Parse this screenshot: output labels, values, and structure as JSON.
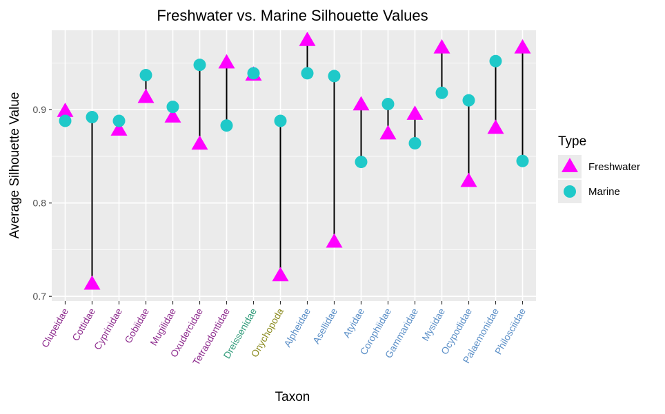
{
  "chart_data": {
    "type": "scatter",
    "title": "Freshwater vs. Marine Silhouette Values",
    "xlabel": "Taxon",
    "ylabel": "Average Silhouette Value",
    "ylim": [
      0.695,
      0.985
    ],
    "yticks": [
      0.7,
      0.8,
      0.9
    ],
    "ytick_labels": [
      "0.7",
      "0.8",
      "0.9"
    ],
    "grid": true,
    "legend_position": "right",
    "legend_title": "Type",
    "categories": [
      "Clupeidae",
      "Cottidae",
      "Cyprinidae",
      "Gobiidae",
      "Mugilidae",
      "Oxudercidae",
      "Tetraodontidae",
      "Dreissenidae",
      "Onychopoda",
      "Alpheidae",
      "Asellidae",
      "Atyidae",
      "Corophiidae",
      "Gammaridae",
      "Mysidae",
      "Ocypodidae",
      "Palaemonidae",
      "Philosciidae"
    ],
    "category_colors": [
      "#8e2c8e",
      "#8e2c8e",
      "#8e2c8e",
      "#8e2c8e",
      "#8e2c8e",
      "#8e2c8e",
      "#8e2c8e",
      "#2e9a78",
      "#8a8a1e",
      "#5b8fc7",
      "#5b8fc7",
      "#5b8fc7",
      "#5b8fc7",
      "#5b8fc7",
      "#5b8fc7",
      "#5b8fc7",
      "#5b8fc7",
      "#5b8fc7"
    ],
    "series": [
      {
        "name": "Freshwater",
        "marker": "triangle",
        "color": "#ff00ff",
        "values": [
          0.898,
          0.713,
          0.878,
          0.913,
          0.892,
          0.863,
          0.95,
          0.937,
          0.722,
          0.974,
          0.758,
          0.905,
          0.874,
          0.895,
          0.966,
          0.823,
          0.88,
          0.966
        ]
      },
      {
        "name": "Marine",
        "marker": "circle",
        "color": "#1fc9c9",
        "values": [
          0.888,
          0.892,
          0.888,
          0.937,
          0.903,
          0.948,
          0.883,
          0.939,
          0.888,
          0.939,
          0.936,
          0.844,
          0.906,
          0.864,
          0.918,
          0.91,
          0.952,
          0.845
        ]
      }
    ]
  }
}
